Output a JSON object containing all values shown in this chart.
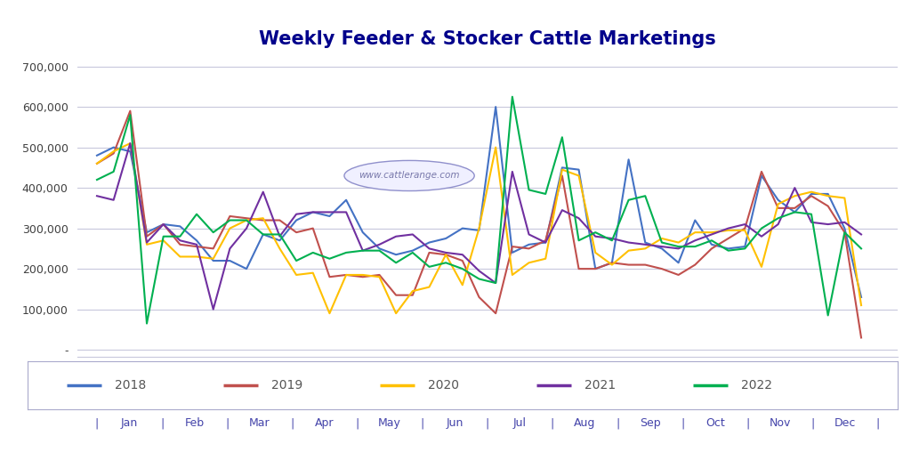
{
  "title": "Weekly Feeder & Stocker Cattle Marketings",
  "title_color": "#00008B",
  "bg_color": "#FFFFFF",
  "plot_bg_color": "#FFFFFF",
  "grid_color": "#C8C8DC",
  "line_colors": {
    "2018": "#4472C4",
    "2019": "#C0504D",
    "2020": "#FFC000",
    "2021": "#7030A0",
    "2022": "#00B050"
  },
  "legend_years": [
    "2018",
    "2019",
    "2020",
    "2021",
    "2022"
  ],
  "x_labels": [
    "Jan",
    "Feb",
    "Mar",
    "Apr",
    "May",
    "Jun",
    "Jul",
    "Aug",
    "Sep",
    "Oct",
    "Nov",
    "Dec"
  ],
  "y_ticks": [
    0,
    100000,
    200000,
    300000,
    400000,
    500000,
    600000,
    700000
  ],
  "ylim": [
    -18000,
    730000
  ],
  "watermark": "www.cattlerange.com",
  "data": {
    "2018": [
      480000,
      500000,
      490000,
      290000,
      310000,
      305000,
      270000,
      220000,
      220000,
      200000,
      285000,
      270000,
      320000,
      340000,
      330000,
      370000,
      290000,
      250000,
      235000,
      245000,
      265000,
      275000,
      300000,
      295000,
      600000,
      240000,
      260000,
      265000,
      450000,
      445000,
      200000,
      215000,
      470000,
      265000,
      250000,
      215000,
      320000,
      260000,
      250000,
      255000,
      430000,
      370000,
      340000,
      385000,
      385000,
      300000,
      130000
    ],
    "2019": [
      460000,
      485000,
      590000,
      280000,
      310000,
      260000,
      255000,
      250000,
      330000,
      325000,
      320000,
      320000,
      290000,
      300000,
      180000,
      185000,
      180000,
      185000,
      135000,
      135000,
      240000,
      235000,
      220000,
      130000,
      90000,
      255000,
      250000,
      270000,
      430000,
      200000,
      200000,
      215000,
      210000,
      210000,
      200000,
      185000,
      210000,
      250000,
      275000,
      300000,
      440000,
      350000,
      350000,
      380000,
      355000,
      290000,
      30000
    ],
    "2020": [
      460000,
      490000,
      510000,
      260000,
      270000,
      230000,
      230000,
      225000,
      300000,
      320000,
      325000,
      250000,
      185000,
      190000,
      90000,
      185000,
      185000,
      180000,
      90000,
      145000,
      155000,
      235000,
      160000,
      300000,
      500000,
      185000,
      215000,
      225000,
      445000,
      430000,
      240000,
      210000,
      245000,
      250000,
      275000,
      265000,
      290000,
      290000,
      295000,
      295000,
      205000,
      360000,
      380000,
      390000,
      380000,
      375000,
      110000
    ],
    "2021": [
      380000,
      370000,
      510000,
      265000,
      310000,
      270000,
      260000,
      100000,
      250000,
      300000,
      390000,
      280000,
      335000,
      340000,
      340000,
      340000,
      245000,
      260000,
      280000,
      285000,
      250000,
      240000,
      235000,
      195000,
      165000,
      440000,
      285000,
      265000,
      345000,
      325000,
      280000,
      275000,
      265000,
      260000,
      255000,
      250000,
      270000,
      285000,
      300000,
      310000,
      280000,
      310000,
      400000,
      315000,
      310000,
      315000,
      285000
    ],
    "2022": [
      420000,
      440000,
      580000,
      65000,
      280000,
      280000,
      335000,
      290000,
      320000,
      320000,
      285000,
      285000,
      220000,
      240000,
      225000,
      240000,
      245000,
      245000,
      215000,
      240000,
      205000,
      215000,
      200000,
      175000,
      165000,
      625000,
      395000,
      385000,
      525000,
      270000,
      290000,
      270000,
      370000,
      380000,
      265000,
      255000,
      255000,
      270000,
      245000,
      250000,
      300000,
      325000,
      340000,
      335000,
      85000,
      290000,
      250000
    ]
  }
}
